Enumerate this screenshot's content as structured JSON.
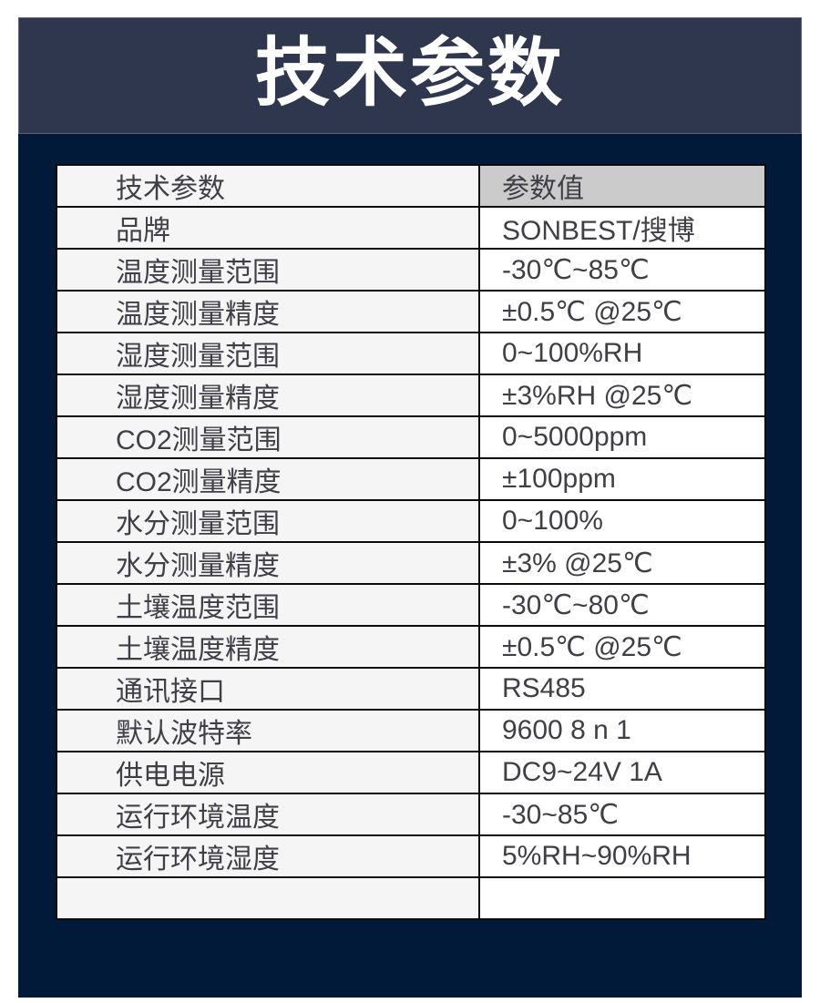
{
  "title": "技术参数",
  "table": {
    "headers": [
      "技术参数",
      "参数值"
    ],
    "rows": [
      [
        "品牌",
        "SONBEST/搜博"
      ],
      [
        "温度测量范围",
        "-30℃~85℃"
      ],
      [
        "温度测量精度",
        "±0.5℃ @25℃"
      ],
      [
        "湿度测量范围",
        "0~100%RH"
      ],
      [
        "湿度测量精度",
        "±3%RH @25℃"
      ],
      [
        "CO2测量范围",
        "0~5000ppm"
      ],
      [
        "CO2测量精度",
        "±100ppm"
      ],
      [
        "水分测量范围",
        "0~100%"
      ],
      [
        "水分测量精度",
        "±3% @25℃"
      ],
      [
        "土壤温度范围",
        "-30℃~80℃"
      ],
      [
        "土壤温度精度",
        "±0.5℃ @25℃"
      ],
      [
        "通讯接口",
        "RS485"
      ],
      [
        "默认波特率",
        "9600 8 n 1"
      ],
      [
        "供电电源",
        "DC9~24V 1A"
      ],
      [
        "运行环境温度",
        "-30~85℃"
      ],
      [
        "运行环境湿度",
        "5%RH~90%RH"
      ],
      [
        "",
        ""
      ]
    ]
  },
  "colors": {
    "banner_bg": "#2F374F",
    "panel_bg": "#021A3A",
    "header_row_bg": "#CBCBCB",
    "name_cell_bg": "#F5F5F5",
    "value_cell_bg": "#FFFFFF",
    "table_border": "#0A0A0A",
    "table_text": "#3F3F46",
    "title_text": "#FFFFFF"
  }
}
